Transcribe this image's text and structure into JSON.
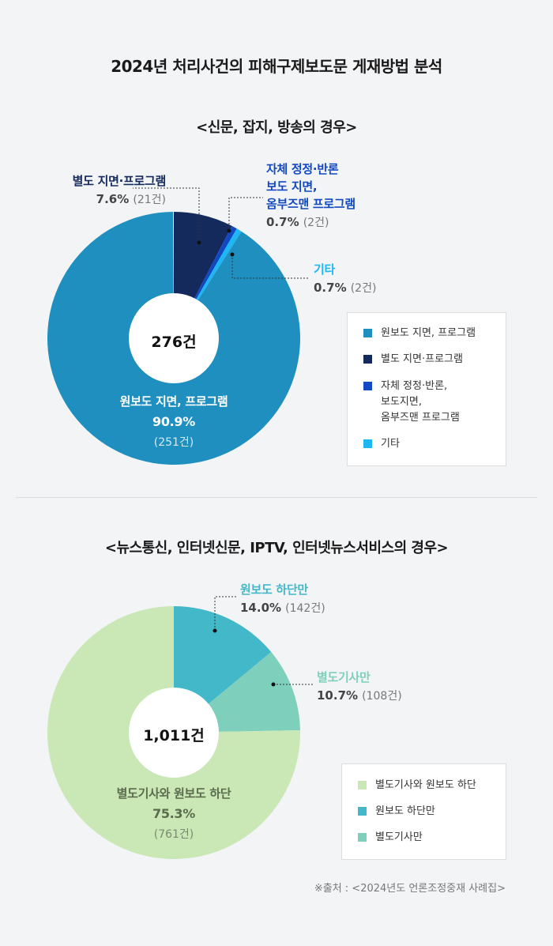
{
  "title": "2024년 처리사건의 피해구제보도문 게재방법 분석",
  "source": "※출처 : <2024년도 언론조정중재 사례집>",
  "chart_data": [
    {
      "type": "pie",
      "title": "<신문, 잡지, 방송의 경우>",
      "center_label": "276건",
      "slices": [
        {
          "name": "원보도 지면, 프로그램",
          "label": "원보도 지면, 프로그램",
          "value": 90.9,
          "pct_text": "90.9%",
          "count_text": "(251건)",
          "color": "#1f8fc0"
        },
        {
          "name": "별도 지면·프로그램",
          "label": "별도 지면·프로그램",
          "value": 7.6,
          "pct_text": "7.6%",
          "count_text": "(21건)",
          "color": "#14295c"
        },
        {
          "name": "자체 정정·반론 보도 지면, 옴부즈맨 프로그램",
          "label_lines": [
            "자체 정정·반론",
            "보도 지면,",
            "옴부즈맨 프로그램"
          ],
          "value": 0.7,
          "pct_text": "0.7%",
          "count_text": "(2건)",
          "color": "#1249c2"
        },
        {
          "name": "기타",
          "label": "기타",
          "value": 0.7,
          "pct_text": "0.7%",
          "count_text": "(2건)",
          "color": "#1eb7f5"
        }
      ],
      "legend": [
        {
          "label": "원보도 지면, 프로그램",
          "color": "#1f8fc0"
        },
        {
          "label": "별도 지면·프로그램",
          "color": "#14295c"
        },
        {
          "label_lines": [
            "자체 정정·반론,",
            "보도지면,",
            "옴부즈맨 프로그램"
          ],
          "color": "#1249c2"
        },
        {
          "label": "기타",
          "color": "#1eb7f5"
        }
      ]
    },
    {
      "type": "pie",
      "title": "<뉴스통신, 인터넷신문, IPTV, 인터넷뉴스서비스의 경우>",
      "center_label": "1,011건",
      "slices": [
        {
          "name": "원보도 하단만",
          "label": "원보도 하단만",
          "value": 14.0,
          "pct_text": "14.0%",
          "count_text": "(142건)",
          "color": "#43b8c8"
        },
        {
          "name": "별도기사만",
          "label": "별도기사만",
          "value": 10.7,
          "pct_text": "10.7%",
          "count_text": "(108건)",
          "color": "#7fcfbd"
        },
        {
          "name": "별도기사와 원보도 하단",
          "label": "별도기사와 원보도 하단",
          "value": 75.3,
          "pct_text": "75.3%",
          "count_text": "(761건)",
          "color": "#c9e8b5"
        }
      ],
      "legend": [
        {
          "label": "별도기사와 원보도 하단",
          "color": "#c9e8b5"
        },
        {
          "label": "원보도 하단만",
          "color": "#43b8c8"
        },
        {
          "label": "별도기사만",
          "color": "#7fcfbd"
        }
      ]
    }
  ]
}
